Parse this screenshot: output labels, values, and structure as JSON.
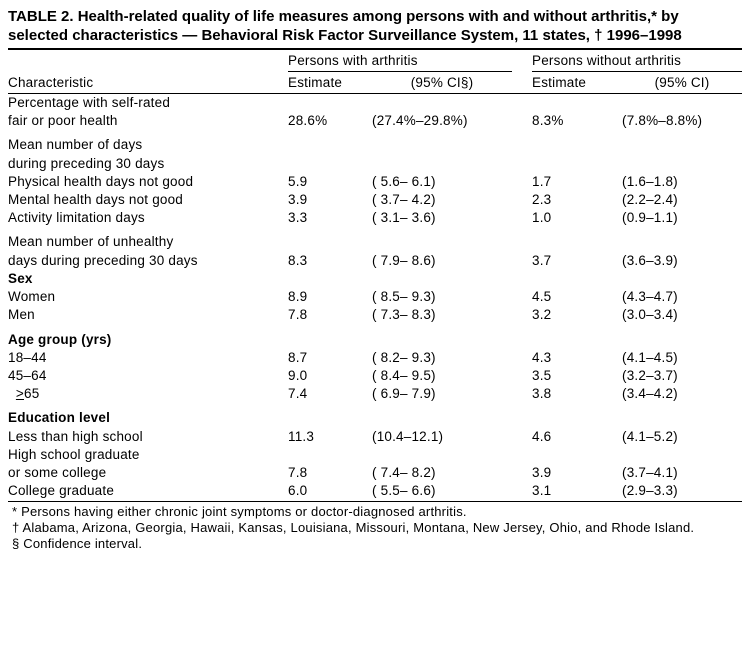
{
  "title": "TABLE 2. Health-related quality of life measures among persons with and without arthritis,* by selected characteristics — Behavioral Risk Factor Surveillance System, 11 states, † 1996–1998",
  "headers": {
    "characteristic": "Characteristic",
    "group_with": "Persons  with  arthritis",
    "group_without": "Persons  without  arthritis",
    "estimate": "Estimate",
    "ci_with": "(95%  CI§)",
    "ci_without": "(95%  CI)"
  },
  "sections": {
    "self_rated_l1": "Percentage  with  self-rated",
    "self_rated_l2": "fair  or  poor  health",
    "mean_days_l1": "Mean  number  of  days",
    "mean_days_l2": "during  preceding  30  days",
    "phys": "Physical  health  days  not  good",
    "ment": "Mental  health  days  not  good",
    "act": "Activity  limitation  days",
    "unhealthy_l1": "Mean  number  of  unhealthy",
    "unhealthy_l2": "days  during  preceding  30  days",
    "sex": "Sex",
    "women": "Women",
    "men": "Men",
    "age": "Age  group  (yrs)",
    "a18": "18–44",
    "a45": "45–64",
    "a65": "  ≥65",
    "edu": "Education  level",
    "lths": "Less  than  high  school",
    "hsgrad_l1": "High  school  graduate",
    "hsgrad_l2": "or  some  college",
    "college": "College  graduate"
  },
  "data": {
    "self_rated": {
      "e1": "28.6%",
      "c1": "(27.4%–29.8%)",
      "e2": "8.3%",
      "c2": "(7.8%–8.8%)"
    },
    "phys": {
      "e1": "5.9",
      "c1": "(  5.6–  6.1)",
      "e2": "1.7",
      "c2": "(1.6–1.8)"
    },
    "ment": {
      "e1": "3.9",
      "c1": "(  3.7–  4.2)",
      "e2": "2.3",
      "c2": "(2.2–2.4)"
    },
    "act": {
      "e1": "3.3",
      "c1": "(  3.1–  3.6)",
      "e2": "1.0",
      "c2": "(0.9–1.1)"
    },
    "unhealthy": {
      "e1": "8.3",
      "c1": "(  7.9–  8.6)",
      "e2": "3.7",
      "c2": "(3.6–3.9)"
    },
    "women": {
      "e1": "8.9",
      "c1": "(  8.5–  9.3)",
      "e2": "4.5",
      "c2": "(4.3–4.7)"
    },
    "men": {
      "e1": "7.8",
      "c1": "(  7.3–  8.3)",
      "e2": "3.2",
      "c2": "(3.0–3.4)"
    },
    "a18": {
      "e1": "8.7",
      "c1": "(  8.2–  9.3)",
      "e2": "4.3",
      "c2": "(4.1–4.5)"
    },
    "a45": {
      "e1": "9.0",
      "c1": "(  8.4–  9.5)",
      "e2": "3.5",
      "c2": "(3.2–3.7)"
    },
    "a65": {
      "e1": "7.4",
      "c1": "(  6.9–  7.9)",
      "e2": "3.8",
      "c2": "(3.4–4.2)"
    },
    "lths": {
      "e1": "11.3",
      "c1": "(10.4–12.1)",
      "e2": "4.6",
      "c2": "(4.1–5.2)"
    },
    "hsgrad": {
      "e1": "7.8",
      "c1": "(  7.4–  8.2)",
      "e2": "3.9",
      "c2": "(3.7–4.1)"
    },
    "college": {
      "e1": "6.0",
      "c1": "(  5.5–  6.6)",
      "e2": "3.1",
      "c2": "(2.9–3.3)"
    }
  },
  "footnotes": {
    "f1": "* Persons having either chronic joint symptoms or doctor-diagnosed arthritis.",
    "f2": "† Alabama, Arizona, Georgia, Hawaii, Kansas, Louisiana, Missouri, Montana, New Jersey, Ohio, and Rhode Island.",
    "f3": "§ Confidence interval."
  }
}
